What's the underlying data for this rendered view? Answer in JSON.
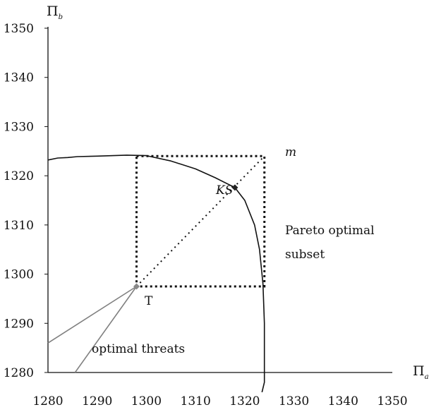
{
  "chart_data": {
    "type": "line",
    "xlabel": "Π",
    "xlabel_sub": "a",
    "ylabel": "Π",
    "ylabel_sub": "b",
    "xlim": [
      1280,
      1350
    ],
    "ylim": [
      1280,
      1350
    ],
    "x_ticks": [
      1280,
      1290,
      1300,
      1310,
      1320,
      1330,
      1340,
      1350
    ],
    "y_ticks": [
      1280,
      1290,
      1300,
      1310,
      1320,
      1330,
      1340,
      1350
    ],
    "grid": false,
    "frontier": {
      "points": [
        [
          1280,
          1323.2
        ],
        [
          1282,
          1323.6
        ],
        [
          1284,
          1323.7
        ],
        [
          1286,
          1323.9
        ],
        [
          1290,
          1324
        ],
        [
          1296,
          1324.2
        ],
        [
          1300,
          1324.1
        ],
        [
          1305,
          1323
        ],
        [
          1310,
          1321.4
        ],
        [
          1314,
          1319.6
        ],
        [
          1318,
          1317.6
        ],
        [
          1320,
          1315
        ],
        [
          1322,
          1310
        ],
        [
          1323,
          1305
        ],
        [
          1323.7,
          1298
        ],
        [
          1324,
          1290
        ],
        [
          1324,
          1282
        ],
        [
          1324,
          1278
        ],
        [
          1323.5,
          1276
        ]
      ]
    },
    "pareto_box": {
      "x": [
        1298,
        1324
      ],
      "y": [
        1297.5,
        1324
      ]
    },
    "diagonal": {
      "from": [
        1298,
        1297.5
      ],
      "to": [
        1324,
        1324
      ]
    },
    "threat_lines": [
      {
        "from": [
          1298,
          1297.5
        ],
        "to": [
          1280,
          1286
        ]
      },
      {
        "from": [
          1298,
          1297.5
        ],
        "to": [
          1285.5,
          1280
        ]
      }
    ],
    "points": [
      {
        "label": "T",
        "x": 1298,
        "y": 1297.5,
        "color": "#888888"
      },
      {
        "label": "KS",
        "x": 1318,
        "y": 1317.6,
        "color": "#222222"
      },
      {
        "label": "m",
        "x": 1324,
        "y": 1324,
        "color": "none"
      }
    ],
    "annotations": {
      "pareto_line1": "Pareto optimal",
      "pareto_line2": "subset",
      "threats": "optimal threats"
    },
    "colors": {
      "frontier": "#111111",
      "threat": "#808080",
      "box": "#111111"
    }
  }
}
